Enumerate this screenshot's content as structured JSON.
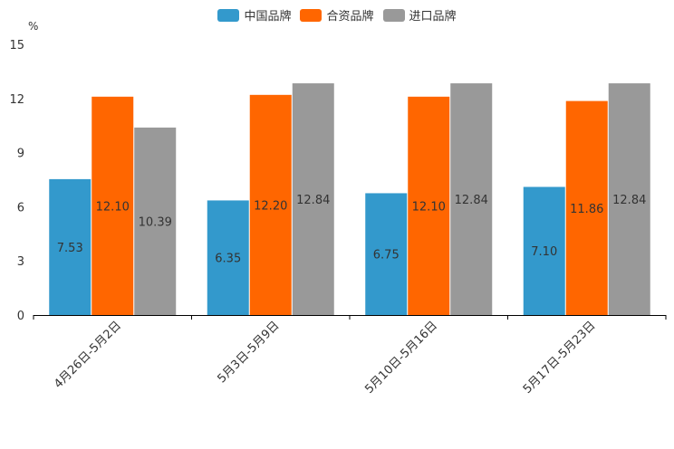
{
  "chart_data": {
    "type": "bar",
    "title": "",
    "ylabel": "%",
    "xlabel": "",
    "ylim": [
      0,
      15
    ],
    "yticks": [
      "0",
      "3",
      "6",
      "9",
      "12",
      "15"
    ],
    "categories": [
      "4月26日-5月2日",
      "5月3日-5月9日",
      "5月10日-5月16日",
      "5月17日-5月23日"
    ],
    "series": [
      {
        "name": "中国品牌",
        "color": "#3399cc",
        "values": [
          7.53,
          6.35,
          6.75,
          7.1
        ],
        "labels": [
          "7.53",
          "6.35",
          "6.75",
          "7.10"
        ]
      },
      {
        "name": "合资品牌",
        "color": "#ff6600",
        "values": [
          12.1,
          12.2,
          12.1,
          11.86
        ],
        "labels": [
          "12.10",
          "12.20",
          "12.10",
          "11.86"
        ]
      },
      {
        "name": "进口品牌",
        "color": "#999999",
        "values": [
          10.39,
          12.84,
          12.84,
          12.84
        ],
        "labels": [
          "10.39",
          "12.84",
          "12.84",
          "12.84"
        ]
      }
    ]
  }
}
